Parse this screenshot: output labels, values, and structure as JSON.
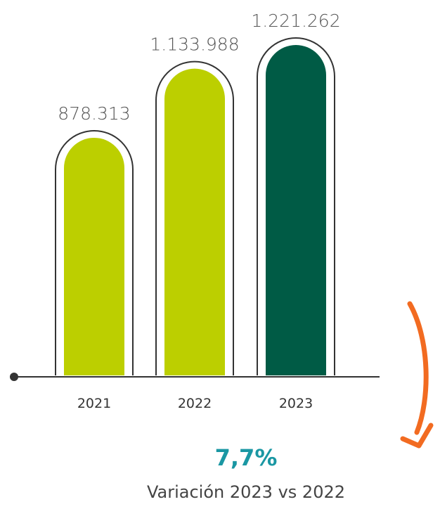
{
  "chart_data": {
    "type": "bar",
    "categories": [
      "2021",
      "2022",
      "2023"
    ],
    "values": [
      878313,
      1133988,
      1221262
    ],
    "value_labels": [
      "878.313",
      "1.133.988",
      "1.221.262"
    ],
    "bar_colors": [
      "#bccf00",
      "#bccf00",
      "#005b45"
    ],
    "outline_color": "#333333",
    "axis_color": "#333333",
    "title": "",
    "xlabel": "",
    "ylabel": "",
    "grid": false
  },
  "variation": {
    "value": "7,7%",
    "label": "Variación 2023 vs 2022",
    "value_color": "#1a97a3",
    "arrow_color": "#f26b21"
  }
}
